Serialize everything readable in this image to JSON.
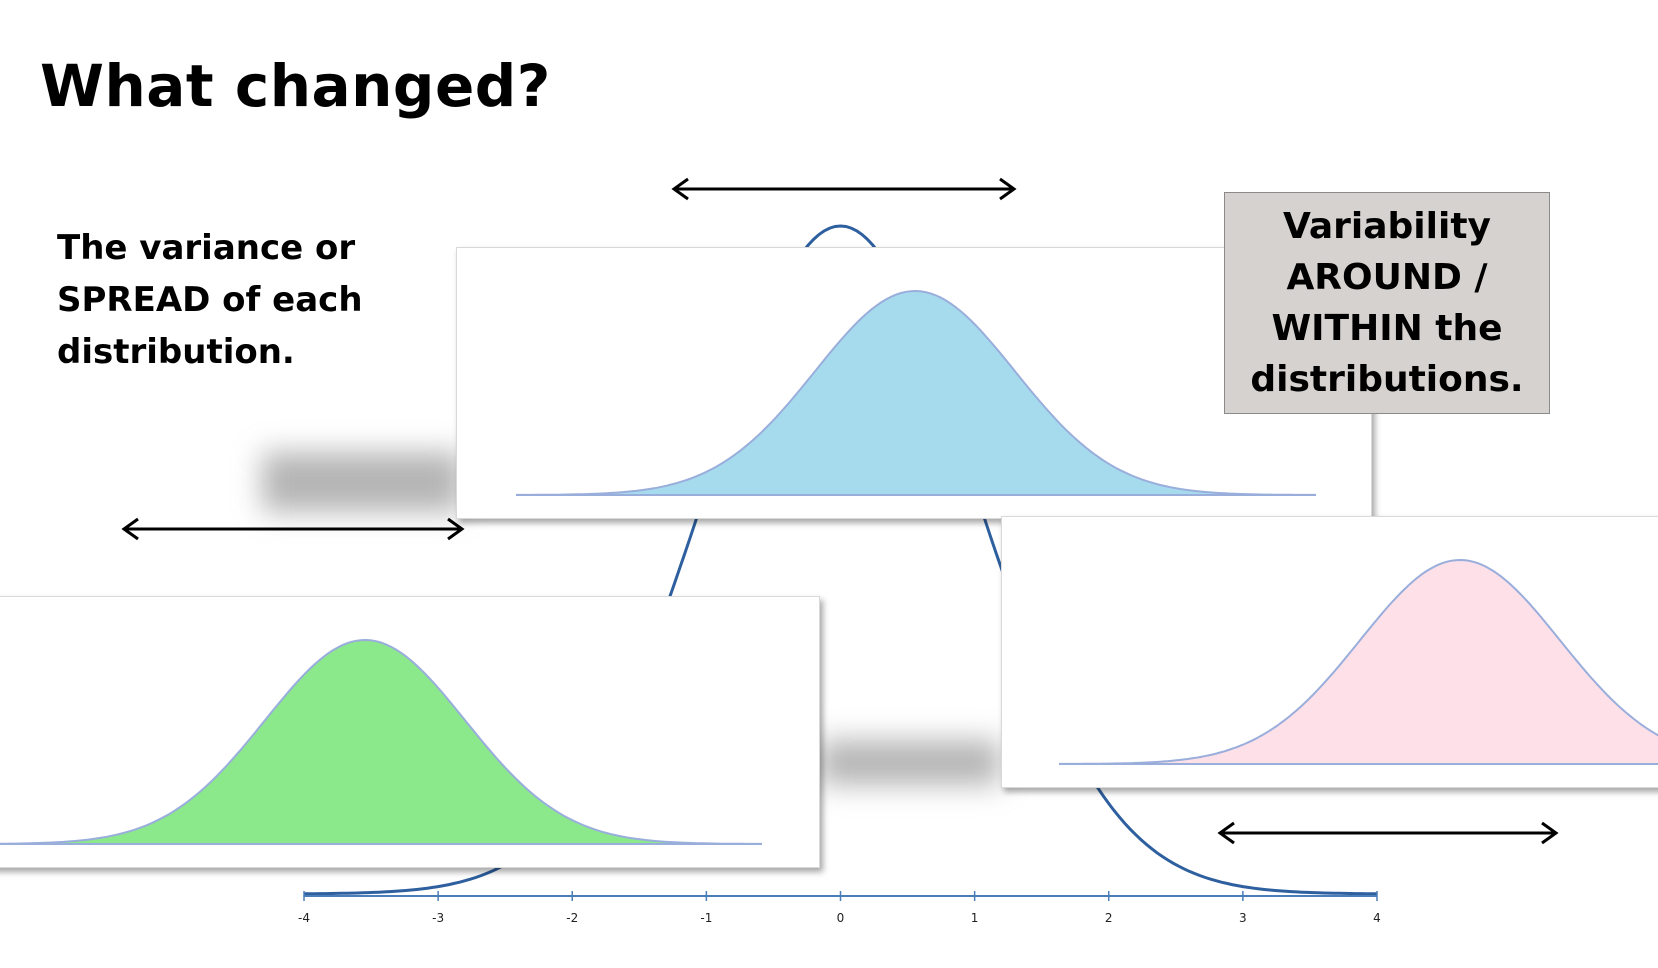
{
  "title": "What changed?",
  "left_text": [
    "The variance or",
    "SPREAD of each",
    "distribution."
  ],
  "callout_lines": [
    "Variability",
    "AROUND /",
    "WITHIN the",
    "distributions."
  ],
  "axis": {
    "ticks": [
      "-4",
      "-3",
      "-2",
      "-1",
      "0",
      "1",
      "2",
      "3",
      "4"
    ],
    "range": [
      -4,
      4
    ]
  },
  "distributions": [
    {
      "name": "blue",
      "fill": "#a6dbee"
    },
    {
      "name": "green",
      "fill": "#8be88b"
    },
    {
      "name": "pink",
      "fill": "#fde0e8"
    }
  ],
  "colors": {
    "background_curve": "#2e5f9e",
    "axis_line": "#4a7ebb",
    "curve_outline": "#9aaedc",
    "callout_bg": "#d6d2cf"
  }
}
